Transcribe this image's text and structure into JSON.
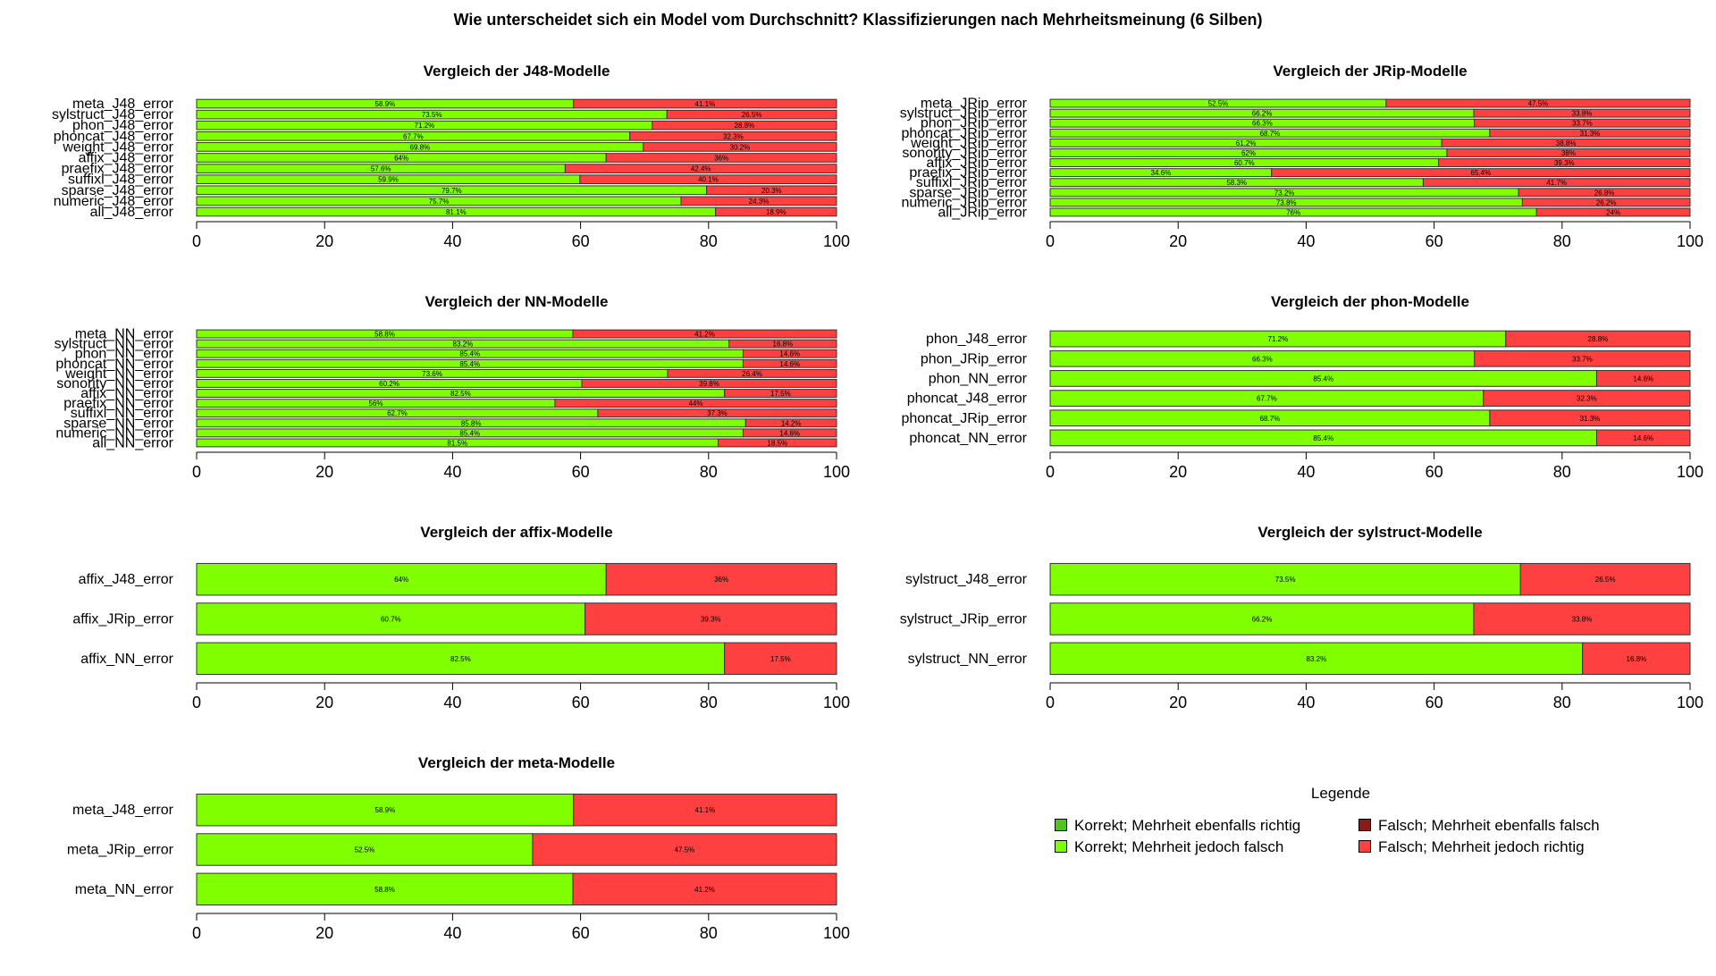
{
  "main_title": "Wie unterscheidet sich ein Model vom Durchschnitt? Klassifizierungen nach Mehrheitsmeinung (6 Silben)",
  "colors": {
    "correct_majority_correct": "#52c41a",
    "correct_majority_wrong": "#7fff00",
    "wrong_majority_wrong": "#8b1a1a",
    "wrong_majority_correct": "#ff4040"
  },
  "legend": {
    "title": "Legende",
    "items": [
      {
        "label": "Korrekt; Mehrheit ebenfalls richtig",
        "color": "#52c41a"
      },
      {
        "label": "Falsch; Mehrheit ebenfalls falsch",
        "color": "#8b1a1a"
      },
      {
        "label": "Korrekt; Mehrheit jedoch falsch",
        "color": "#7fff00"
      },
      {
        "label": "Falsch; Mehrheit jedoch richtig",
        "color": "#ff4040"
      }
    ]
  },
  "chart_data": [
    {
      "type": "bar",
      "orientation": "horizontal",
      "stacked": true,
      "title": "Vergleich der J48-Modelle",
      "xlim": [
        0,
        100
      ],
      "xticks": [
        0,
        20,
        40,
        60,
        80,
        100
      ],
      "categories": [
        "meta_J48_error",
        "sylstruct_J48_error",
        "phon_J48_error",
        "phoncat_J48_error",
        "weight_J48_error",
        "affix_J48_error",
        "praefix_J48_error",
        "suffixl_J48_error",
        "sparse_J48_error",
        "numeric_J48_error",
        "all_J48_error"
      ],
      "series": [
        {
          "name": "Korrekt; Mehrheit jedoch falsch",
          "values": [
            58.9,
            73.5,
            71.2,
            67.7,
            69.8,
            64,
            57.6,
            59.9,
            79.7,
            75.7,
            81.1
          ],
          "labels": [
            "58.9%",
            "73.5%",
            "71.2%",
            "67.7%",
            "69.8%",
            "64%",
            "57.6%",
            "59.9%",
            "79.7%",
            "75.7%",
            "81.1%"
          ]
        },
        {
          "name": "Falsch; Mehrheit jedoch richtig",
          "values": [
            41.1,
            26.5,
            28.8,
            32.3,
            30.2,
            36,
            42.4,
            40.1,
            20.3,
            24.3,
            18.9
          ],
          "labels": [
            "41.1%",
            "26.5%",
            "28.8%",
            "32.3%",
            "30.2%",
            "36%",
            "42.4%",
            "40.1%",
            "20.3%",
            "24.3%",
            "18.9%"
          ]
        }
      ]
    },
    {
      "type": "bar",
      "orientation": "horizontal",
      "stacked": true,
      "title": "Vergleich der JRip-Modelle",
      "xlim": [
        0,
        100
      ],
      "xticks": [
        0,
        20,
        40,
        60,
        80,
        100
      ],
      "categories": [
        "meta_JRip_error",
        "sylstruct_JRip_error",
        "phon_JRip_error",
        "phoncat_JRip_error",
        "weight_JRip_error",
        "sonority_JRip_error",
        "affix_JRip_error",
        "praefix_JRip_error",
        "suffixl_JRip_error",
        "sparse_JRip_error",
        "numeric_JRip_error",
        "all_JRip_error"
      ],
      "series": [
        {
          "name": "Korrekt; Mehrheit jedoch falsch",
          "values": [
            52.5,
            66.2,
            66.3,
            68.7,
            61.2,
            62,
            60.7,
            34.6,
            58.3,
            73.2,
            73.8,
            76
          ],
          "labels": [
            "52.5%",
            "66.2%",
            "66.3%",
            "68.7%",
            "61.2%",
            "62%",
            "60.7%",
            "34.6%",
            "58.3%",
            "73.2%",
            "73.8%",
            "76%"
          ]
        },
        {
          "name": "Falsch; Mehrheit jedoch richtig",
          "values": [
            47.5,
            33.8,
            33.7,
            31.3,
            38.8,
            38,
            39.3,
            65.4,
            41.7,
            26.8,
            26.2,
            24
          ],
          "labels": [
            "47.5%",
            "33.8%",
            "33.7%",
            "31.3%",
            "38.8%",
            "38%",
            "39.3%",
            "65.4%",
            "41.7%",
            "26.8%",
            "26.2%",
            "24%"
          ]
        }
      ]
    },
    {
      "type": "bar",
      "orientation": "horizontal",
      "stacked": true,
      "title": "Vergleich der NN-Modelle",
      "xlim": [
        0,
        100
      ],
      "xticks": [
        0,
        20,
        40,
        60,
        80,
        100
      ],
      "categories": [
        "meta_NN_error",
        "sylstruct_NN_error",
        "phon_NN_error",
        "phoncat_NN_error",
        "weight_NN_error",
        "sonority_NN_error",
        "affix_NN_error",
        "praefix_NN_error",
        "suffixl_NN_error",
        "sparse_NN_error",
        "numeric_NN_error",
        "all_NN_error"
      ],
      "series": [
        {
          "name": "Korrekt; Mehrheit jedoch falsch",
          "values": [
            58.8,
            83.2,
            85.4,
            85.4,
            73.6,
            60.2,
            82.5,
            56,
            62.7,
            85.8,
            85.4,
            81.5
          ],
          "labels": [
            "58.8%",
            "83.2%",
            "85.4%",
            "85.4%",
            "73.6%",
            "60.2%",
            "82.5%",
            "56%",
            "62.7%",
            "85.8%",
            "85.4%",
            "81.5%"
          ]
        },
        {
          "name": "Falsch; Mehrheit jedoch richtig",
          "values": [
            41.2,
            16.8,
            14.6,
            14.6,
            26.4,
            39.8,
            17.5,
            44,
            37.3,
            14.2,
            14.6,
            18.5
          ],
          "labels": [
            "41.2%",
            "16.8%",
            "14.6%",
            "14.6%",
            "26.4%",
            "39.8%",
            "17.5%",
            "44%",
            "37.3%",
            "14.2%",
            "14.6%",
            "18.5%"
          ]
        }
      ]
    },
    {
      "type": "bar",
      "orientation": "horizontal",
      "stacked": true,
      "title": "Vergleich der phon-Modelle",
      "xlim": [
        0,
        100
      ],
      "xticks": [
        0,
        20,
        40,
        60,
        80,
        100
      ],
      "categories": [
        "phon_J48_error",
        "phon_JRip_error",
        "phon_NN_error",
        "phoncat_J48_error",
        "phoncat_JRip_error",
        "phoncat_NN_error"
      ],
      "series": [
        {
          "name": "Korrekt; Mehrheit jedoch falsch",
          "values": [
            71.2,
            66.3,
            85.4,
            67.7,
            68.7,
            85.4
          ],
          "labels": [
            "71.2%",
            "66.3%",
            "85.4%",
            "67.7%",
            "68.7%",
            "85.4%"
          ]
        },
        {
          "name": "Falsch; Mehrheit jedoch richtig",
          "values": [
            28.8,
            33.7,
            14.6,
            32.3,
            31.3,
            14.6
          ],
          "labels": [
            "28.8%",
            "33.7%",
            "14.6%",
            "32.3%",
            "31.3%",
            "14.6%"
          ]
        }
      ]
    },
    {
      "type": "bar",
      "orientation": "horizontal",
      "stacked": true,
      "title": "Vergleich der affix-Modelle",
      "xlim": [
        0,
        100
      ],
      "xticks": [
        0,
        20,
        40,
        60,
        80,
        100
      ],
      "categories": [
        "affix_J48_error",
        "affix_JRip_error",
        "affix_NN_error"
      ],
      "series": [
        {
          "name": "Korrekt; Mehrheit jedoch falsch",
          "values": [
            64,
            60.7,
            82.5
          ],
          "labels": [
            "64%",
            "60.7%",
            "82.5%"
          ]
        },
        {
          "name": "Falsch; Mehrheit jedoch richtig",
          "values": [
            36,
            39.3,
            17.5
          ],
          "labels": [
            "36%",
            "39.3%",
            "17.5%"
          ]
        }
      ]
    },
    {
      "type": "bar",
      "orientation": "horizontal",
      "stacked": true,
      "title": "Vergleich der sylstruct-Modelle",
      "xlim": [
        0,
        100
      ],
      "xticks": [
        0,
        20,
        40,
        60,
        80,
        100
      ],
      "categories": [
        "sylstruct_J48_error",
        "sylstruct_JRip_error",
        "sylstruct_NN_error"
      ],
      "series": [
        {
          "name": "Korrekt; Mehrheit jedoch falsch",
          "values": [
            73.5,
            66.2,
            83.2
          ],
          "labels": [
            "73.5%",
            "66.2%",
            "83.2%"
          ]
        },
        {
          "name": "Falsch; Mehrheit jedoch richtig",
          "values": [
            26.5,
            33.8,
            16.8
          ],
          "labels": [
            "26.5%",
            "33.8%",
            "16.8%"
          ]
        }
      ]
    },
    {
      "type": "bar",
      "orientation": "horizontal",
      "stacked": true,
      "title": "Vergleich der meta-Modelle",
      "xlim": [
        0,
        100
      ],
      "xticks": [
        0,
        20,
        40,
        60,
        80,
        100
      ],
      "categories": [
        "meta_J48_error",
        "meta_JRip_error",
        "meta_NN_error"
      ],
      "series": [
        {
          "name": "Korrekt; Mehrheit jedoch falsch",
          "values": [
            58.9,
            52.5,
            58.8
          ],
          "labels": [
            "58.9%",
            "52.5%",
            "58.8%"
          ]
        },
        {
          "name": "Falsch; Mehrheit jedoch richtig",
          "values": [
            41.1,
            47.5,
            41.2
          ],
          "labels": [
            "41.1%",
            "47.5%",
            "41.2%"
          ]
        }
      ]
    }
  ]
}
